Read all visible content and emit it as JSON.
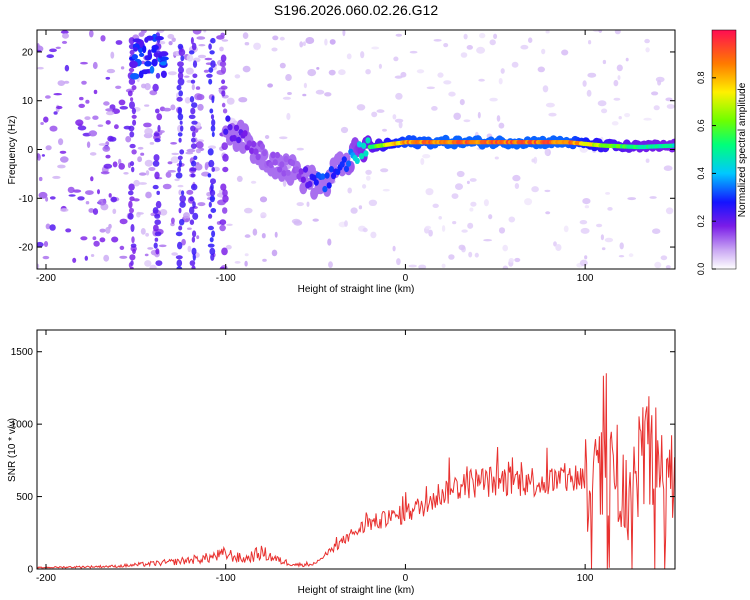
{
  "title": "S196.2026.060.02.26.G12",
  "chart_data": [
    {
      "type": "heatmap",
      "name": "spectrogram",
      "xlabel": "Height of straight line (km)",
      "ylabel": "Frequency (Hz)",
      "xlim": [
        -205,
        150
      ],
      "ylim": [
        -24.5,
        24.5
      ],
      "xticks": [
        -200,
        -100,
        0,
        100
      ],
      "yticks": [
        -20,
        -10,
        0,
        10,
        20
      ],
      "colorbar": {
        "label": "Normalized spectral amplitude",
        "range": [
          0.0,
          1.0
        ],
        "ticks": [
          0.0,
          0.2,
          0.4,
          0.6,
          0.8
        ],
        "tick_labels": [
          "0.0",
          "0.2",
          "0.4",
          "0.6",
          "0.8"
        ]
      },
      "ridge": {
        "x": [
          -100,
          -90,
          -80,
          -70,
          -60,
          -50,
          -45,
          -40,
          -35,
          -30,
          -20,
          -10,
          0,
          20,
          50,
          90,
          110,
          130,
          150
        ],
        "freq": [
          5,
          2,
          -1,
          -3,
          -5,
          -7,
          -7.5,
          -5,
          -3,
          -1.5,
          0.5,
          1,
          1.5,
          1.5,
          1.5,
          1.5,
          0.8,
          0.5,
          0.8
        ],
        "amplitude": [
          0.25,
          0.2,
          0.15,
          0.15,
          0.15,
          0.3,
          0.35,
          0.3,
          0.3,
          0.4,
          0.55,
          0.75,
          0.9,
          0.95,
          0.95,
          0.95,
          0.7,
          0.55,
          0.5
        ]
      }
    },
    {
      "type": "line",
      "name": "snr",
      "xlabel": "Height of straight line (km)",
      "ylabel": "SNR (10 * v/v)",
      "xlim": [
        -205,
        150
      ],
      "ylim": [
        0,
        1650
      ],
      "xticks": [
        -200,
        -100,
        0,
        100
      ],
      "yticks": [
        0,
        500,
        1000,
        1500
      ],
      "color": "#e8312f",
      "envelope": {
        "x": [
          -205,
          -160,
          -130,
          -110,
          -100,
          -90,
          -80,
          -70,
          -60,
          -50,
          -40,
          -30,
          -20,
          -10,
          0,
          10,
          20,
          30,
          40,
          60,
          80,
          90,
          100,
          110,
          115,
          120,
          125,
          130,
          135,
          140,
          145,
          150
        ],
        "y": [
          10,
          20,
          50,
          80,
          110,
          70,
          120,
          60,
          30,
          40,
          150,
          250,
          330,
          360,
          400,
          460,
          550,
          600,
          630,
          640,
          630,
          650,
          670,
          680,
          650,
          560,
          520,
          700,
          900,
          650,
          800,
          400
        ]
      }
    }
  ]
}
